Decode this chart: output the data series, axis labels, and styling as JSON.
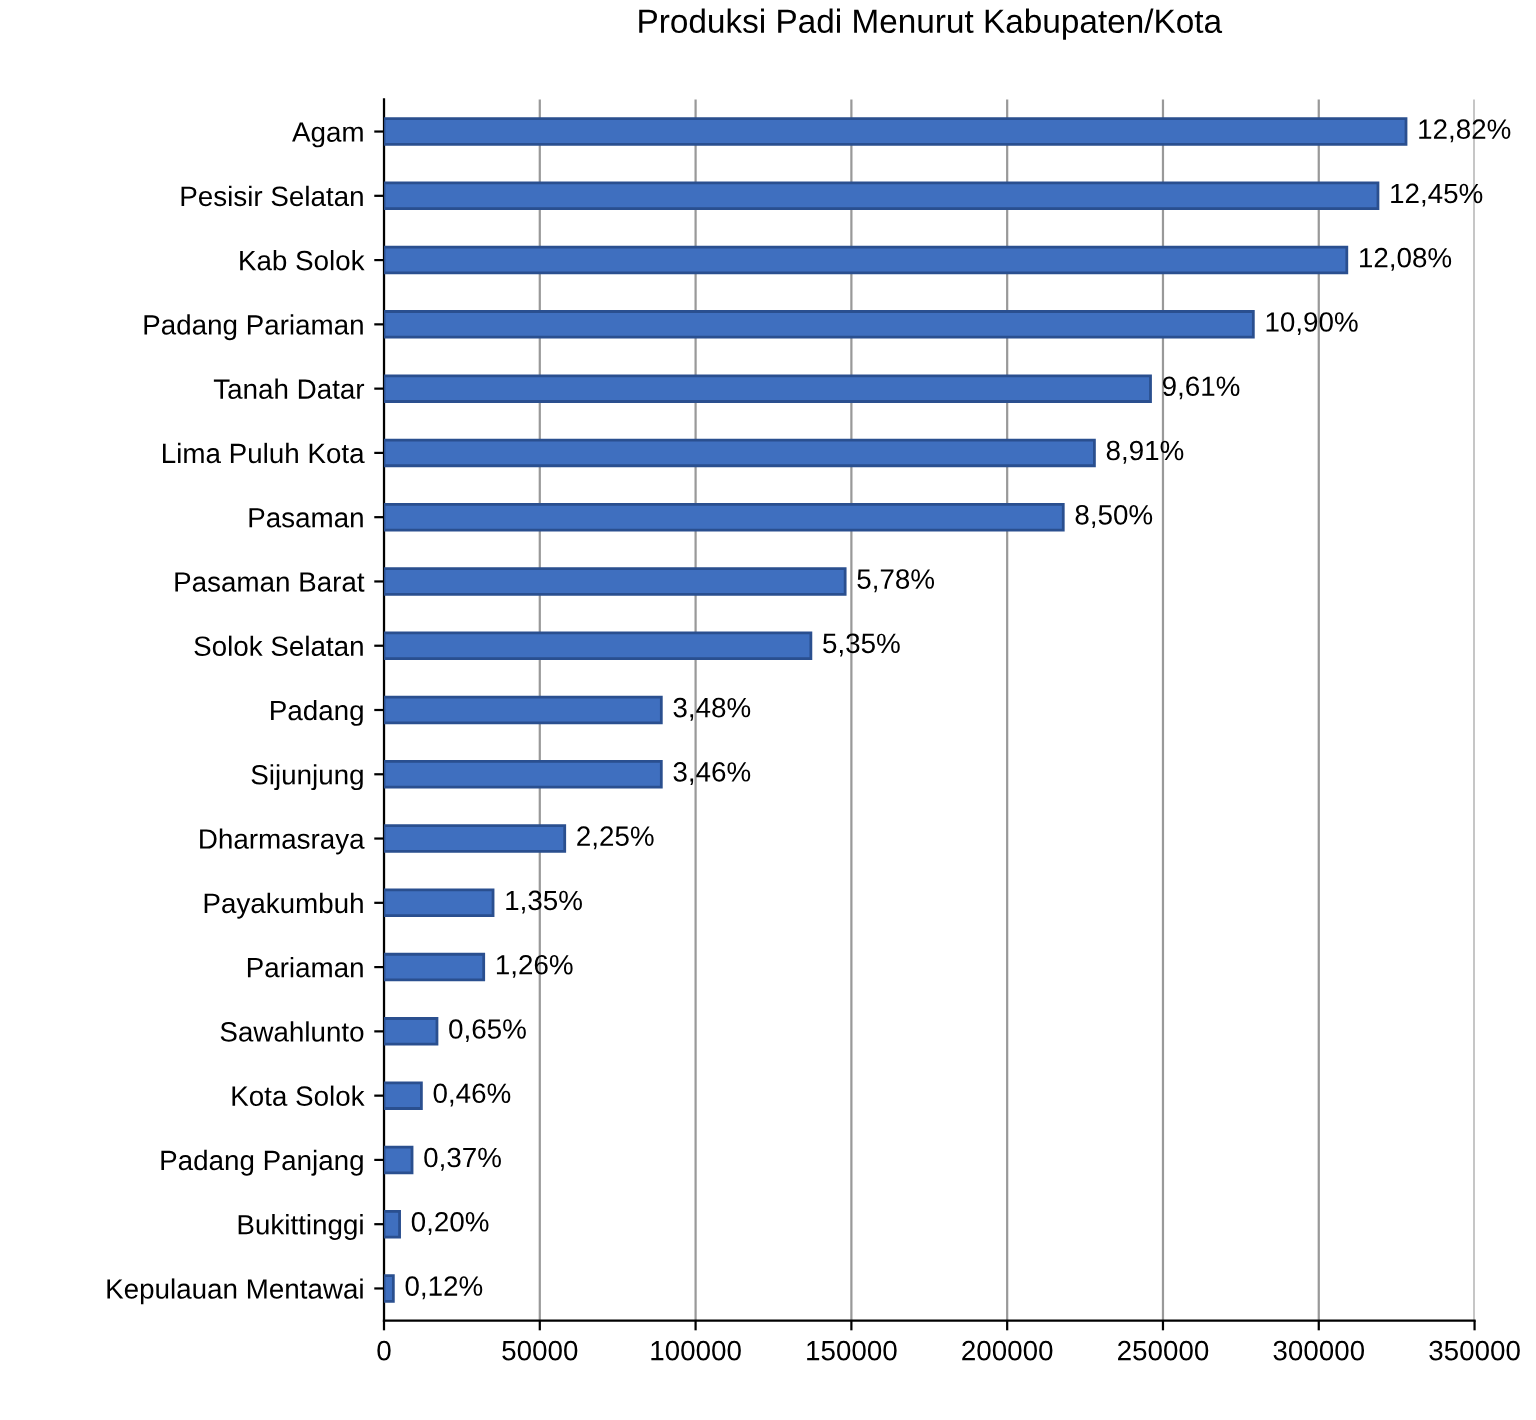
{
  "chart_data": {
    "type": "bar",
    "orientation": "horizontal",
    "title": "Produksi Padi Menurut Kabupaten/Kota",
    "categories": [
      "Agam",
      "Pesisir Selatan",
      "Kab Solok",
      "Padang Pariaman",
      "Tanah Datar",
      "Lima Puluh Kota",
      "Pasaman",
      "Pasaman Barat",
      "Solok Selatan",
      "Padang",
      "Sijunjung",
      "Dharmasraya",
      "Payakumbuh",
      "Pariaman",
      "Sawahlunto",
      "Kota Solok",
      "Padang Panjang",
      "Bukittinggi",
      "Kepulauan Mentawai"
    ],
    "values": [
      328000,
      319000,
      309000,
      279000,
      246000,
      228000,
      218000,
      148000,
      137000,
      89000,
      89000,
      58000,
      35000,
      32000,
      17000,
      12000,
      9000,
      5000,
      3000
    ],
    "annotations": [
      {
        "text": "12,82%",
        "x": 328000,
        "y": "Agam"
      },
      {
        "text": "12,45%",
        "x": 319000,
        "y": "Pesisir Selatan"
      },
      {
        "text": "12,08%",
        "x": 309000,
        "y": "Kab Solok"
      },
      {
        "text": "10,90%",
        "x": 279000,
        "y": "Padang Pariaman"
      },
      {
        "text": "9,61%",
        "x": 246000,
        "y": "Tanah Datar"
      },
      {
        "text": "8,91%",
        "x": 228000,
        "y": "Lima Puluh Kota"
      },
      {
        "text": "8,50%",
        "x": 218000,
        "y": "Pasaman"
      },
      {
        "text": "5,78%",
        "x": 148000,
        "y": "Pasaman Barat"
      },
      {
        "text": "5,35%",
        "x": 137000,
        "y": "Solok Selatan"
      },
      {
        "text": "3,48%",
        "x": 89000,
        "y": "Padang"
      },
      {
        "text": "3,46%",
        "x": 89000,
        "y": "Sijunjung"
      },
      {
        "text": "2,25%",
        "x": 58000,
        "y": "Dharmasraya"
      },
      {
        "text": "1,35%",
        "x": 35000,
        "y": "Payakumbuh"
      },
      {
        "text": "1,26%",
        "x": 32000,
        "y": "Pariaman"
      },
      {
        "text": "0,65%",
        "x": 17000,
        "y": "Sawahlunto"
      },
      {
        "text": "0,46%",
        "x": 12000,
        "y": "Kota Solok"
      },
      {
        "text": "0,37%",
        "x": 9000,
        "y": "Padang Panjang"
      },
      {
        "text": "0,20%",
        "x": 5000,
        "y": "Bukittinggi"
      },
      {
        "text": "0,12%",
        "x": 3000,
        "y": "Kepulauan Mentawai"
      }
    ],
    "color": "#3f6fbf",
    "xlim": [
      0,
      350000
    ],
    "xticks": [
      0,
      50000,
      100000,
      150000,
      200000,
      250000,
      300000,
      350000
    ],
    "grid": "x"
  }
}
